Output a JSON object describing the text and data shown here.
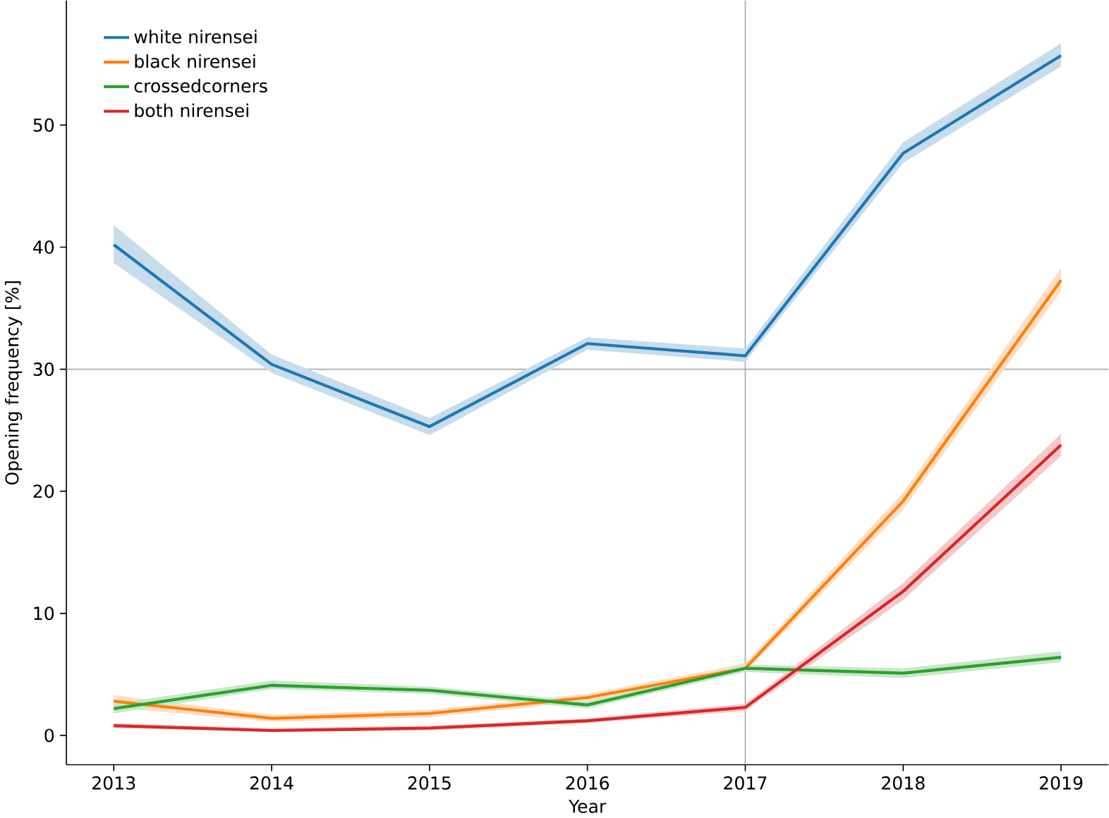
{
  "chart_data": {
    "type": "line",
    "xlabel": "Year",
    "ylabel": "Opening frequency [%]",
    "x": [
      2013,
      2014,
      2015,
      2016,
      2017,
      2018,
      2019
    ],
    "xlim": [
      2012.7,
      2019.3
    ],
    "ylim": [
      -2.4,
      60.2
    ],
    "xticks": [
      2013,
      2014,
      2015,
      2016,
      2017,
      2018,
      2019
    ],
    "yticks": [
      0,
      10,
      20,
      30,
      40,
      50
    ],
    "legend": "top left",
    "ref_lines": [
      {
        "axis": "x",
        "value": 2017,
        "color": "#aaaaaa"
      },
      {
        "axis": "y",
        "value": 30,
        "color": "#aaaaaa"
      }
    ],
    "series": [
      {
        "name": "white nirensei",
        "color": "#1f77b4",
        "values": [
          40.2,
          30.4,
          25.3,
          32.1,
          31.1,
          47.7,
          55.7
        ],
        "lower": [
          38.7,
          29.7,
          24.6,
          31.6,
          30.6,
          46.9,
          54.8
        ],
        "upper": [
          41.8,
          31.2,
          26.0,
          32.6,
          31.7,
          48.6,
          56.7
        ]
      },
      {
        "name": "black nirensei",
        "color": "#ff7f0e",
        "values": [
          2.8,
          1.4,
          1.8,
          3.1,
          5.5,
          19.2,
          37.3
        ],
        "lower": [
          2.3,
          1.1,
          1.5,
          2.8,
          5.2,
          18.5,
          36.4
        ],
        "upper": [
          3.3,
          1.7,
          2.1,
          3.4,
          5.9,
          19.9,
          38.3
        ]
      },
      {
        "name": "crossedcorners",
        "color": "#2ca02c",
        "values": [
          2.2,
          4.1,
          3.7,
          2.5,
          5.5,
          5.1,
          6.4
        ],
        "lower": [
          1.8,
          3.8,
          3.4,
          2.2,
          5.2,
          4.7,
          6.0
        ],
        "upper": [
          2.6,
          4.5,
          4.0,
          2.8,
          5.8,
          5.5,
          6.9
        ]
      },
      {
        "name": "both nirensei",
        "color": "#d62728",
        "values": [
          0.8,
          0.4,
          0.6,
          1.2,
          2.3,
          11.8,
          23.8
        ],
        "lower": [
          0.6,
          0.3,
          0.4,
          1.0,
          2.0,
          11.1,
          22.9
        ],
        "upper": [
          1.0,
          0.6,
          0.8,
          1.4,
          2.6,
          12.5,
          24.7
        ]
      }
    ]
  }
}
